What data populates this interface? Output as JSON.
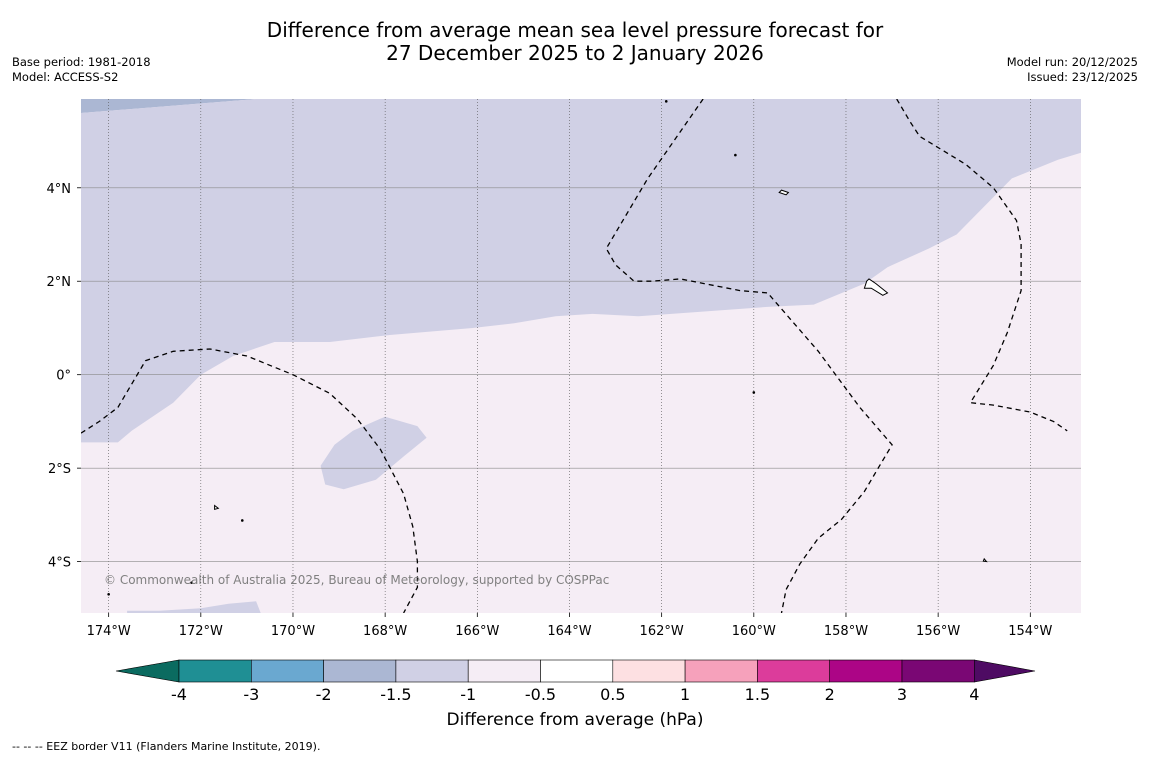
{
  "title": {
    "line1": "Difference from average mean sea level pressure forecast for",
    "line2": "27 December 2025 to 2 January 2026"
  },
  "meta_left": {
    "base_period": "Base period: 1981-2018",
    "model": "Model: ACCESS-S2"
  },
  "meta_right": {
    "model_run": "Model run: 20/12/2025",
    "issued": "Issued: 23/12/2025"
  },
  "map": {
    "copyright": "© Commonwealth of Australia 2025, Bureau of Meteorology, supported by COSPPac",
    "lon_range": [
      -174.6,
      -152.9
    ],
    "lat_range": [
      -5.1,
      5.9
    ],
    "lon_ticks": [
      {
        "value": -174,
        "label": "174°W"
      },
      {
        "value": -172,
        "label": "172°W"
      },
      {
        "value": -170,
        "label": "170°W"
      },
      {
        "value": -168,
        "label": "168°W"
      },
      {
        "value": -166,
        "label": "166°W"
      },
      {
        "value": -164,
        "label": "164°W"
      },
      {
        "value": -162,
        "label": "162°W"
      },
      {
        "value": -160,
        "label": "160°W"
      },
      {
        "value": -158,
        "label": "158°W"
      },
      {
        "value": -156,
        "label": "156°W"
      },
      {
        "value": -154,
        "label": "154°W"
      }
    ],
    "lat_ticks": [
      {
        "value": 4,
        "label": "4°N"
      },
      {
        "value": 2,
        "label": "2°N"
      },
      {
        "value": 0,
        "label": "0°"
      },
      {
        "value": -2,
        "label": "2°S"
      },
      {
        "value": -4,
        "label": "4°S"
      }
    ],
    "anomaly_fields": {
      "band_-2_to_-1.5": [
        [
          -174.6,
          5.9
        ],
        [
          -170.8,
          5.9
        ],
        [
          -174.6,
          5.6
        ]
      ],
      "band_-1.5_to_-1": [
        [
          [
            -170.8,
            5.9
          ],
          [
            -152.9,
            5.9
          ],
          [
            -152.9,
            4.75
          ],
          [
            -153.4,
            4.6
          ],
          [
            -154.4,
            4.2
          ],
          [
            -155.6,
            3.0
          ],
          [
            -156.2,
            2.7
          ],
          [
            -157.1,
            2.3
          ],
          [
            -157.6,
            1.95
          ],
          [
            -158.7,
            1.5
          ],
          [
            -159.7,
            1.45
          ],
          [
            -162.5,
            1.25
          ],
          [
            -163.5,
            1.3
          ],
          [
            -164.3,
            1.25
          ],
          [
            -165.2,
            1.1
          ],
          [
            -166.1,
            1.0
          ],
          [
            -167.9,
            0.85
          ],
          [
            -169.2,
            0.7
          ],
          [
            -170.4,
            0.7
          ],
          [
            -171.3,
            0.4
          ],
          [
            -172.0,
            0.0
          ],
          [
            -172.6,
            -0.6
          ],
          [
            -173.5,
            -1.2
          ],
          [
            -173.8,
            -1.45
          ],
          [
            -174.6,
            -1.45
          ],
          [
            -174.6,
            5.6
          ]
        ],
        [
          [
            -168.0,
            -0.9
          ],
          [
            -167.3,
            -1.1
          ],
          [
            -167.1,
            -1.35
          ],
          [
            -167.6,
            -1.75
          ],
          [
            -168.2,
            -2.25
          ],
          [
            -168.9,
            -2.45
          ],
          [
            -169.3,
            -2.35
          ],
          [
            -169.4,
            -1.95
          ],
          [
            -169.1,
            -1.5
          ],
          [
            -168.7,
            -1.2
          ]
        ],
        [
          [
            -173.6,
            -5.1
          ],
          [
            -173.6,
            -5.05
          ],
          [
            -172.9,
            -5.05
          ],
          [
            -172.0,
            -5.0
          ],
          [
            -171.4,
            -4.9
          ],
          [
            -170.8,
            -4.85
          ],
          [
            -170.7,
            -5.1
          ]
        ]
      ]
    },
    "eez_borders": [
      [
        [
          -174.6,
          -1.25
        ],
        [
          -174.2,
          -1.0
        ],
        [
          -173.8,
          -0.7
        ],
        [
          -173.2,
          0.3
        ],
        [
          -172.6,
          0.5
        ],
        [
          -171.8,
          0.55
        ],
        [
          -171.0,
          0.4
        ],
        [
          -170.0,
          0.0
        ],
        [
          -169.2,
          -0.4
        ],
        [
          -168.6,
          -0.95
        ],
        [
          -168.1,
          -1.6
        ],
        [
          -167.6,
          -2.55
        ],
        [
          -167.4,
          -3.25
        ],
        [
          -167.3,
          -4.0
        ],
        [
          -167.3,
          -4.55
        ],
        [
          -167.6,
          -5.1
        ]
      ],
      [
        [
          -161.1,
          5.9
        ],
        [
          -162.3,
          4.2
        ],
        [
          -163.2,
          2.7
        ],
        [
          -163.0,
          2.35
        ],
        [
          -162.6,
          2.0
        ],
        [
          -162.2,
          2.0
        ],
        [
          -161.6,
          2.05
        ],
        [
          -160.3,
          1.8
        ],
        [
          -159.7,
          1.75
        ],
        [
          -158.6,
          0.5
        ],
        [
          -157.7,
          -0.7
        ],
        [
          -157.0,
          -1.5
        ],
        [
          -157.3,
          -2.0
        ],
        [
          -157.6,
          -2.5
        ],
        [
          -158.1,
          -3.1
        ],
        [
          -158.6,
          -3.5
        ],
        [
          -159.0,
          -4.05
        ],
        [
          -159.3,
          -4.6
        ],
        [
          -159.4,
          -5.1
        ]
      ],
      [
        [
          -156.9,
          5.9
        ],
        [
          -156.6,
          5.4
        ],
        [
          -156.4,
          5.1
        ],
        [
          -155.9,
          4.8
        ],
        [
          -155.4,
          4.5
        ],
        [
          -154.8,
          4.0
        ],
        [
          -154.3,
          3.3
        ],
        [
          -154.2,
          2.8
        ],
        [
          -154.2,
          1.8
        ],
        [
          -154.5,
          0.9
        ],
        [
          -154.8,
          0.2
        ],
        [
          -155.3,
          -0.6
        ],
        [
          -154.8,
          -0.65
        ],
        [
          -154.0,
          -0.8
        ],
        [
          -153.5,
          -1.0
        ],
        [
          -153.2,
          -1.2
        ]
      ]
    ],
    "islands": [
      [
        [
          -159.4,
          3.95
        ],
        [
          -159.25,
          3.9
        ],
        [
          -159.3,
          3.85
        ],
        [
          -159.45,
          3.9
        ]
      ],
      [
        [
          -157.5,
          2.05
        ],
        [
          -157.35,
          1.95
        ],
        [
          -157.1,
          1.75
        ],
        [
          -157.2,
          1.7
        ],
        [
          -157.45,
          1.85
        ],
        [
          -157.6,
          1.85
        ],
        [
          -157.55,
          2.0
        ]
      ],
      [
        [
          -171.7,
          -2.8
        ],
        [
          -171.62,
          -2.86
        ],
        [
          -171.7,
          -2.88
        ]
      ],
      [
        [
          -155.0,
          -3.94
        ],
        [
          -154.95,
          -4.0
        ],
        [
          -155.02,
          -3.99
        ]
      ]
    ],
    "island_dots": [
      [
        -161.9,
        5.85
      ],
      [
        -160.4,
        4.7
      ],
      [
        -160.0,
        -0.38
      ],
      [
        -171.1,
        -3.12
      ],
      [
        -172.2,
        -4.45
      ],
      [
        -174.0,
        -4.7
      ]
    ]
  },
  "colorbar": {
    "title": "Difference from average (hPa)",
    "tick_labels": [
      "-4",
      "-3",
      "-2",
      "-1.5",
      "-1",
      "-0.5",
      "0.5",
      "1",
      "1.5",
      "2",
      "3",
      "4"
    ],
    "colors": {
      "below_min": "#0b6b60",
      "bins": [
        "#1f8f94",
        "#6aa8d0",
        "#abb7d3",
        "#d0d0e5",
        "#f5edf5",
        "#ffffff",
        "#fde0e2",
        "#f6a1bb",
        "#dc3c9b",
        "#ac0586",
        "#7a0774"
      ],
      "above_max": "#4e0b63"
    }
  },
  "footer": "--  --  -- EEZ border V11 (Flanders Marine Institute, 2019)."
}
